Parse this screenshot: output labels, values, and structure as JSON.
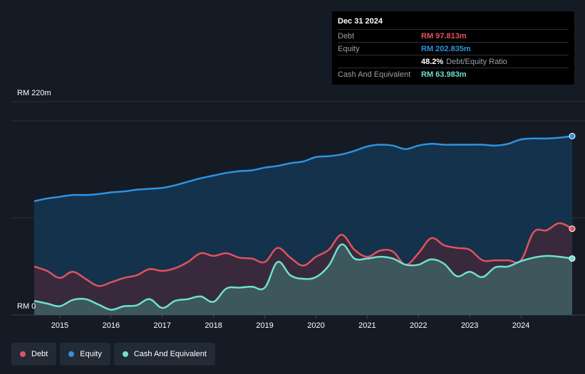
{
  "tooltip": {
    "date": "Dec 31 2024",
    "debt_label": "Debt",
    "debt_value": "RM 97.813m",
    "equity_label": "Equity",
    "equity_value": "RM 202.835m",
    "ratio_value": "48.2%",
    "ratio_label": "Debt/Equity Ratio",
    "cash_label": "Cash And Equivalent",
    "cash_value": "RM 63.983m"
  },
  "axis": {
    "y_top_label": "RM 220m",
    "y_bottom_label": "RM 0"
  },
  "legend": {
    "debt": "Debt",
    "equity": "Equity",
    "cash": "Cash And Equivalent"
  },
  "colors": {
    "debt": "#e05260",
    "equity": "#2e93e0",
    "cash": "#6fe0d0"
  },
  "chart_data": {
    "type": "area",
    "title": "",
    "xlabel": "",
    "ylabel": "",
    "xlim": [
      2014.5,
      2025.0
    ],
    "ylim": [
      0,
      220
    ],
    "x_ticks": [
      2015,
      2016,
      2017,
      2018,
      2019,
      2020,
      2021,
      2022,
      2023,
      2024
    ],
    "x_tick_labels": [
      "2015",
      "2016",
      "2017",
      "2018",
      "2019",
      "2020",
      "2021",
      "2022",
      "2023",
      "2024"
    ],
    "series": [
      {
        "name": "Equity",
        "points": [
          [
            2014.5,
            129
          ],
          [
            2014.75,
            132
          ],
          [
            2015.0,
            134
          ],
          [
            2015.25,
            136
          ],
          [
            2015.5,
            136
          ],
          [
            2015.75,
            137
          ],
          [
            2016.0,
            139
          ],
          [
            2016.25,
            140
          ],
          [
            2016.5,
            142
          ],
          [
            2016.75,
            143
          ],
          [
            2017.0,
            144
          ],
          [
            2017.25,
            147
          ],
          [
            2017.5,
            151
          ],
          [
            2017.75,
            155
          ],
          [
            2018.0,
            158
          ],
          [
            2018.25,
            161
          ],
          [
            2018.5,
            163
          ],
          [
            2018.75,
            164
          ],
          [
            2019.0,
            167
          ],
          [
            2019.25,
            169
          ],
          [
            2019.5,
            172
          ],
          [
            2019.75,
            174
          ],
          [
            2020.0,
            179
          ],
          [
            2020.25,
            180
          ],
          [
            2020.5,
            182
          ],
          [
            2020.75,
            186
          ],
          [
            2021.0,
            191
          ],
          [
            2021.25,
            193
          ],
          [
            2021.5,
            192
          ],
          [
            2021.75,
            188
          ],
          [
            2022.0,
            192
          ],
          [
            2022.25,
            194
          ],
          [
            2022.5,
            193
          ],
          [
            2022.75,
            193
          ],
          [
            2023.0,
            193
          ],
          [
            2023.25,
            193
          ],
          [
            2023.5,
            192
          ],
          [
            2023.75,
            194
          ],
          [
            2024.0,
            199
          ],
          [
            2024.25,
            200
          ],
          [
            2024.5,
            200
          ],
          [
            2024.75,
            201
          ],
          [
            2025.0,
            202.8
          ]
        ]
      },
      {
        "name": "Debt",
        "points": [
          [
            2014.5,
            55
          ],
          [
            2014.75,
            50
          ],
          [
            2015.0,
            42
          ],
          [
            2015.25,
            49
          ],
          [
            2015.5,
            41
          ],
          [
            2015.75,
            33
          ],
          [
            2016.0,
            37
          ],
          [
            2016.25,
            42
          ],
          [
            2016.5,
            45
          ],
          [
            2016.75,
            52
          ],
          [
            2017.0,
            50
          ],
          [
            2017.25,
            53
          ],
          [
            2017.5,
            60
          ],
          [
            2017.75,
            70
          ],
          [
            2018.0,
            67
          ],
          [
            2018.25,
            70
          ],
          [
            2018.5,
            65
          ],
          [
            2018.75,
            64
          ],
          [
            2019.0,
            60
          ],
          [
            2019.25,
            76
          ],
          [
            2019.5,
            65
          ],
          [
            2019.75,
            56
          ],
          [
            2020.0,
            66
          ],
          [
            2020.25,
            74
          ],
          [
            2020.5,
            91
          ],
          [
            2020.75,
            74
          ],
          [
            2021.0,
            66
          ],
          [
            2021.25,
            73
          ],
          [
            2021.5,
            72
          ],
          [
            2021.75,
            57
          ],
          [
            2022.0,
            70
          ],
          [
            2022.25,
            87
          ],
          [
            2022.5,
            79
          ],
          [
            2022.75,
            76
          ],
          [
            2023.0,
            74
          ],
          [
            2023.25,
            62
          ],
          [
            2023.5,
            62
          ],
          [
            2023.75,
            62
          ],
          [
            2024.0,
            62
          ],
          [
            2024.25,
            94
          ],
          [
            2024.5,
            96
          ],
          [
            2024.75,
            104
          ],
          [
            2025.0,
            97.8
          ]
        ]
      },
      {
        "name": "Cash And Equivalent",
        "points": [
          [
            2014.5,
            16
          ],
          [
            2014.75,
            13
          ],
          [
            2015.0,
            10
          ],
          [
            2015.25,
            17
          ],
          [
            2015.5,
            18
          ],
          [
            2015.75,
            12
          ],
          [
            2016.0,
            6
          ],
          [
            2016.25,
            10
          ],
          [
            2016.5,
            11
          ],
          [
            2016.75,
            18
          ],
          [
            2017.0,
            8
          ],
          [
            2017.25,
            16
          ],
          [
            2017.5,
            18
          ],
          [
            2017.75,
            21
          ],
          [
            2018.0,
            15
          ],
          [
            2018.25,
            30
          ],
          [
            2018.5,
            31
          ],
          [
            2018.75,
            32
          ],
          [
            2019.0,
            31
          ],
          [
            2019.25,
            60
          ],
          [
            2019.5,
            45
          ],
          [
            2019.75,
            41
          ],
          [
            2020.0,
            43
          ],
          [
            2020.25,
            56
          ],
          [
            2020.5,
            80
          ],
          [
            2020.75,
            64
          ],
          [
            2021.0,
            64
          ],
          [
            2021.25,
            66
          ],
          [
            2021.5,
            64
          ],
          [
            2021.75,
            57
          ],
          [
            2022.0,
            57
          ],
          [
            2022.25,
            63
          ],
          [
            2022.5,
            58
          ],
          [
            2022.75,
            44
          ],
          [
            2023.0,
            49
          ],
          [
            2023.25,
            43
          ],
          [
            2023.5,
            54
          ],
          [
            2023.75,
            55
          ],
          [
            2024.0,
            61
          ],
          [
            2024.25,
            65
          ],
          [
            2024.5,
            67
          ],
          [
            2024.75,
            66
          ],
          [
            2025.0,
            64
          ]
        ]
      }
    ]
  }
}
